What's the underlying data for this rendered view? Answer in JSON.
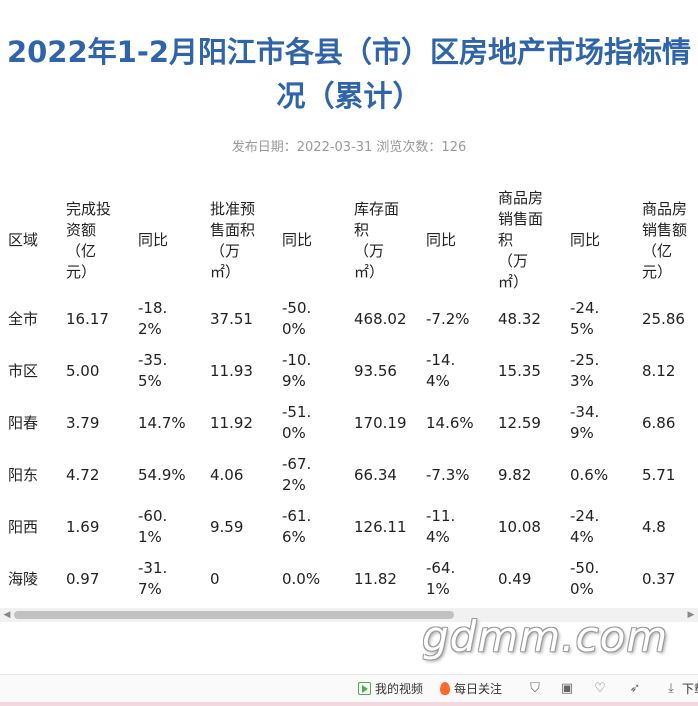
{
  "article": {
    "title": "2022年1-2月阳江市各县（市）区房地产市场指标情况（累计）",
    "meta": "发布日期：2022-03-31  浏览次数：126"
  },
  "table": {
    "headers": [
      [
        "区域"
      ],
      [
        "完成投",
        "资额",
        "（亿",
        "元）"
      ],
      [
        "同比"
      ],
      [
        "批准预",
        "售面积",
        "（万",
        "㎡）"
      ],
      [
        "同比"
      ],
      [
        "库存面",
        "积",
        "（万",
        "㎡）"
      ],
      [
        "同比"
      ],
      [
        "商品房",
        "销售面",
        "积",
        "（万",
        "㎡）"
      ],
      [
        "同比"
      ],
      [
        "商品房",
        "销售额",
        "（亿",
        "元）"
      ]
    ],
    "rows": [
      [
        [
          "全市"
        ],
        [
          "16.17"
        ],
        [
          "-18.",
          "2%"
        ],
        [
          "37.51"
        ],
        [
          "-50.",
          "0%"
        ],
        [
          "468.02"
        ],
        [
          "-7.2%"
        ],
        [
          "48.32"
        ],
        [
          "-24.",
          "5%"
        ],
        [
          "25.86"
        ]
      ],
      [
        [
          "市区"
        ],
        [
          "5.00"
        ],
        [
          "-35.",
          "5%"
        ],
        [
          "11.93"
        ],
        [
          "-10.",
          "9%"
        ],
        [
          "93.56"
        ],
        [
          "-14.",
          "4%"
        ],
        [
          "15.35"
        ],
        [
          "-25.",
          "3%"
        ],
        [
          "8.12"
        ]
      ],
      [
        [
          "阳春"
        ],
        [
          "3.79"
        ],
        [
          "14.7%"
        ],
        [
          "11.92"
        ],
        [
          "-51.",
          "0%"
        ],
        [
          "170.19"
        ],
        [
          "14.6%"
        ],
        [
          "12.59"
        ],
        [
          "-34.",
          "9%"
        ],
        [
          "6.86"
        ]
      ],
      [
        [
          "阳东"
        ],
        [
          "4.72"
        ],
        [
          "54.9%"
        ],
        [
          "4.06"
        ],
        [
          "-67.",
          "2%"
        ],
        [
          "66.34"
        ],
        [
          "-7.3%"
        ],
        [
          "9.82"
        ],
        [
          "0.6%"
        ],
        [
          "5.71"
        ]
      ],
      [
        [
          "阳西"
        ],
        [
          "1.69"
        ],
        [
          "-60.",
          "1%"
        ],
        [
          "9.59"
        ],
        [
          "-61.",
          "6%"
        ],
        [
          "126.11"
        ],
        [
          "-11.",
          "4%"
        ],
        [
          "10.08"
        ],
        [
          "-24.",
          "4%"
        ],
        [
          "4.8"
        ]
      ],
      [
        [
          "海陵"
        ],
        [
          "0.97"
        ],
        [
          "-31.",
          "7%"
        ],
        [
          "0"
        ],
        [
          "0.0%"
        ],
        [
          "11.82"
        ],
        [
          "-64.",
          "1%"
        ],
        [
          "0.49"
        ],
        [
          "-50.",
          "0%"
        ],
        [
          "0.37"
        ]
      ]
    ]
  },
  "watermark": "gdmm.com",
  "bottom_bar": {
    "my_video": "我的视频",
    "daily_focus": "每日关注",
    "download": "下载",
    "icons": [
      "play-icon",
      "fire-icon",
      "shield-icon",
      "image-icon",
      "heart-pulse-icon",
      "rocket-icon",
      "download-icon"
    ]
  },
  "colors": {
    "title": "#2f64a8",
    "meta": "#999999",
    "scroll_thumb": "#c1c1c1",
    "fire": "#ff6a2b",
    "play": "#4caf50"
  }
}
